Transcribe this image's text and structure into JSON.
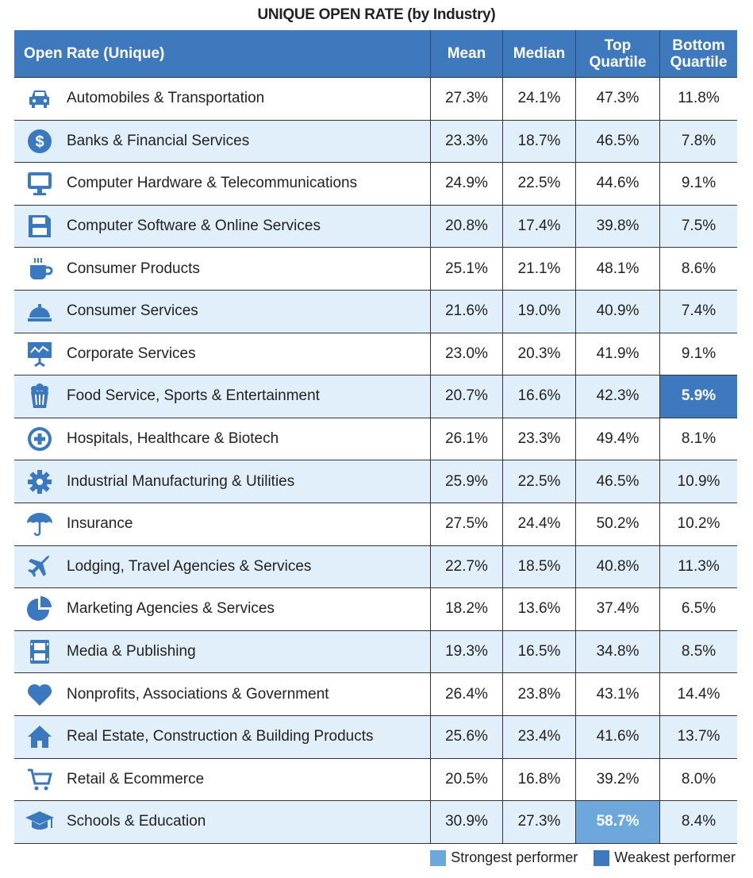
{
  "title": "UNIQUE OPEN RATE (by Industry)",
  "colors": {
    "header": "#3f79bd",
    "alt_row": "#e1effb",
    "strongest": "#6ea7dc",
    "weakest": "#3e78bf",
    "icon": "#3a78c0"
  },
  "legend": {
    "strongest": "Strongest performer",
    "weakest": "Weakest performer"
  },
  "chart_data": {
    "type": "table",
    "title": "UNIQUE OPEN RATE (by Industry)",
    "columns": [
      "Open Rate (Unique)",
      "Mean",
      "Median",
      "Top Quartile",
      "Bottom Quartile"
    ],
    "rows": [
      {
        "icon": "car-icon",
        "industry": "Automobiles & Transportation",
        "mean": "27.3%",
        "median": "24.1%",
        "top": "47.3%",
        "bottom": "11.8%"
      },
      {
        "icon": "dollar-icon",
        "industry": "Banks & Financial Services",
        "mean": "23.3%",
        "median": "18.7%",
        "top": "46.5%",
        "bottom": "7.8%"
      },
      {
        "icon": "monitor-icon",
        "industry": "Computer Hardware & Telecommunications",
        "mean": "24.9%",
        "median": "22.5%",
        "top": "44.6%",
        "bottom": "9.1%"
      },
      {
        "icon": "floppy-disk-icon",
        "industry": "Computer Software & Online Services",
        "mean": "20.8%",
        "median": "17.4%",
        "top": "39.8%",
        "bottom": "7.5%"
      },
      {
        "icon": "coffee-cup-icon",
        "industry": "Consumer Products",
        "mean": "25.1%",
        "median": "21.1%",
        "top": "48.1%",
        "bottom": "8.6%"
      },
      {
        "icon": "service-bell-icon",
        "industry": "Consumer Services",
        "mean": "21.6%",
        "median": "19.0%",
        "top": "40.9%",
        "bottom": "7.4%"
      },
      {
        "icon": "presentation-icon",
        "industry": "Corporate Services",
        "mean": "23.0%",
        "median": "20.3%",
        "top": "41.9%",
        "bottom": "9.1%"
      },
      {
        "icon": "popcorn-icon",
        "industry": "Food Service, Sports & Entertainment",
        "mean": "20.7%",
        "median": "16.6%",
        "top": "42.3%",
        "bottom": "5.9%",
        "highlight": "bottom-weak"
      },
      {
        "icon": "medical-cross-icon",
        "industry": "Hospitals, Healthcare & Biotech",
        "mean": "26.1%",
        "median": "23.3%",
        "top": "49.4%",
        "bottom": "8.1%"
      },
      {
        "icon": "gear-icon",
        "industry": "Industrial Manufacturing & Utilities",
        "mean": "25.9%",
        "median": "22.5%",
        "top": "46.5%",
        "bottom": "10.9%"
      },
      {
        "icon": "umbrella-icon",
        "industry": "Insurance",
        "mean": "27.5%",
        "median": "24.4%",
        "top": "50.2%",
        "bottom": "10.2%"
      },
      {
        "icon": "airplane-icon",
        "industry": "Lodging, Travel Agencies & Services",
        "mean": "22.7%",
        "median": "18.5%",
        "top": "40.8%",
        "bottom": "11.3%"
      },
      {
        "icon": "pie-chart-icon",
        "industry": "Marketing Agencies & Services",
        "mean": "18.2%",
        "median": "13.6%",
        "top": "37.4%",
        "bottom": "6.5%"
      },
      {
        "icon": "film-icon",
        "industry": "Media & Publishing",
        "mean": "19.3%",
        "median": "16.5%",
        "top": "34.8%",
        "bottom": "8.5%"
      },
      {
        "icon": "heart-icon",
        "industry": "Nonprofits, Associations & Government",
        "mean": "26.4%",
        "median": "23.8%",
        "top": "43.1%",
        "bottom": "14.4%"
      },
      {
        "icon": "house-icon",
        "industry": "Real Estate, Construction & Building Products",
        "mean": "25.6%",
        "median": "23.4%",
        "top": "41.6%",
        "bottom": "13.7%"
      },
      {
        "icon": "shopping-cart-icon",
        "industry": "Retail & Ecommerce",
        "mean": "20.5%",
        "median": "16.8%",
        "top": "39.2%",
        "bottom": "8.0%"
      },
      {
        "icon": "graduation-cap-icon",
        "industry": "Schools & Education",
        "mean": "30.9%",
        "median": "27.3%",
        "top": "58.7%",
        "bottom": "8.4%",
        "highlight": "top-strong"
      }
    ]
  }
}
